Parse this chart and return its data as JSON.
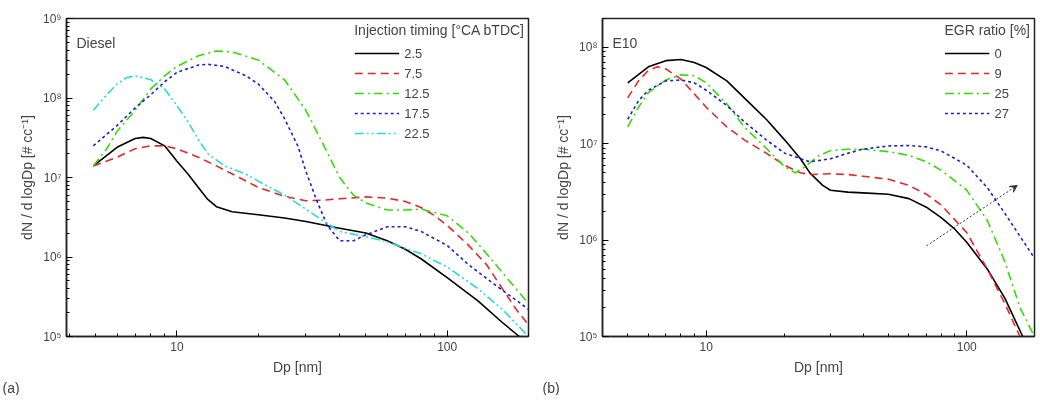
{
  "chart_data": [
    {
      "type": "line",
      "annotations": [
        "Diesel",
        "(a)"
      ],
      "xlabel": "Dp [nm]",
      "ylabel": "dN / d logDp [# cc⁻¹]",
      "legend_title": "Injection timing [°CA bTDC]",
      "legend": "top right",
      "log": "xy",
      "grid": false,
      "xlim": [
        3.9,
        200
      ],
      "ylim": [
        100000,
        1000000000
      ],
      "xticks": [
        10,
        100
      ],
      "yticks": [
        {
          "value": 100000,
          "label": "10⁵"
        },
        {
          "value": 1000000,
          "label": "10⁶"
        },
        {
          "value": 10000000,
          "label": "10⁷"
        },
        {
          "value": 100000000,
          "label": "10⁸"
        },
        {
          "value": 1000000000,
          "label": "10⁹"
        }
      ],
      "series": [
        {
          "name": "2.5",
          "color": "#000000",
          "line_style": "solid",
          "x": [
            4.9,
            5.5,
            6,
            7,
            7.5,
            8,
            9,
            10,
            11,
            12,
            13,
            14,
            16,
            20,
            25,
            30,
            40,
            50,
            60,
            70,
            80,
            100,
            130,
            160,
            185
          ],
          "values": [
            14000000,
            19000000,
            24000000,
            31000000,
            32000000,
            31000000,
            25000000,
            16000000,
            11000000,
            7500000,
            5300000,
            4300000,
            3700000,
            3400000,
            3100000,
            2800000,
            2300000,
            2000000,
            1600000,
            1250000,
            950000,
            550000,
            280000,
            150000,
            100000
          ]
        },
        {
          "name": "7.5",
          "color": "#e8262b",
          "line_style": "dashed",
          "x": [
            4.9,
            6,
            7,
            8,
            9,
            10,
            12,
            14,
            17,
            20,
            25,
            30,
            35,
            40,
            50,
            60,
            70,
            80,
            90,
            100,
            120,
            140,
            160,
            180,
            200
          ],
          "values": [
            14000000,
            18000000,
            23000000,
            25000000,
            25000000,
            23000000,
            18000000,
            14000000,
            10000000,
            7500000,
            5800000,
            5100000,
            5200000,
            5400000,
            5700000,
            5500000,
            5000000,
            4200000,
            3300000,
            2500000,
            1400000,
            800000,
            400000,
            220000,
            140000
          ]
        },
        {
          "name": "12.5",
          "color": "#33dd00",
          "line_style": "dashdot",
          "x": [
            4.9,
            5.5,
            6,
            7,
            8,
            9,
            10,
            12,
            14,
            16,
            20,
            25,
            30,
            35,
            40,
            45,
            50,
            60,
            70,
            80,
            100,
            120,
            140,
            170,
            200
          ],
          "values": [
            14000000,
            23000000,
            38000000,
            70000000,
            130000000,
            190000000,
            250000000,
            340000000,
            390000000,
            380000000,
            300000000,
            170000000,
            70000000,
            25000000,
            10000000,
            6000000,
            4800000,
            3900000,
            3900000,
            4000000,
            3300000,
            2000000,
            1100000,
            500000,
            260000
          ]
        },
        {
          "name": "17.5",
          "color": "#1f1fd0",
          "line_style": "dotted",
          "x": [
            4.9,
            6,
            7,
            8,
            9,
            10,
            12,
            13,
            15,
            18,
            20,
            23,
            25,
            28,
            30,
            33,
            36,
            40,
            45,
            50,
            60,
            70,
            80,
            100,
            120,
            150,
            200
          ],
          "values": [
            25000000,
            45000000,
            75000000,
            110000000,
            160000000,
            210000000,
            260000000,
            265000000,
            250000000,
            190000000,
            150000000,
            90000000,
            55000000,
            25000000,
            12000000,
            5000000,
            2500000,
            1600000,
            1600000,
            1900000,
            2400000,
            2400000,
            2100000,
            1400000,
            800000,
            450000,
            220000
          ]
        },
        {
          "name": "22.5",
          "color": "#22dddd",
          "line_style": "dashdotdot",
          "x": [
            4.9,
            5.5,
            6,
            6.5,
            7,
            8,
            9,
            10,
            11,
            12,
            13,
            15,
            18,
            20,
            25,
            30,
            35,
            40,
            50,
            60,
            80,
            100,
            130,
            160,
            200
          ],
          "values": [
            70000000,
            110000000,
            150000000,
            180000000,
            190000000,
            170000000,
            130000000,
            80000000,
            50000000,
            30000000,
            20000000,
            14000000,
            11000000,
            9000000,
            6000000,
            4000000,
            2800000,
            2100000,
            1800000,
            1550000,
            1100000,
            750000,
            400000,
            220000,
            100000
          ]
        }
      ]
    },
    {
      "type": "line",
      "annotations": [
        "E10",
        "(b)"
      ],
      "xlabel": "Dp [nm]",
      "ylabel": "dN / d logDp [# cc⁻¹]",
      "legend_title": "EGR ratio [%]",
      "legend": "top right",
      "log": "xy",
      "grid": false,
      "xlim": [
        4,
        182
      ],
      "ylim": [
        100000,
        200000000
      ],
      "xticks": [
        10,
        100
      ],
      "yticks": [
        {
          "value": 100000,
          "label": "10⁵"
        },
        {
          "value": 1000000,
          "label": "10⁶"
        },
        {
          "value": 10000000,
          "label": "10⁷"
        },
        {
          "value": 100000000,
          "label": "10⁸"
        }
      ],
      "series": [
        {
          "name": "0",
          "color": "#000000",
          "line_style": "solid",
          "x": [
            5,
            6,
            7,
            8,
            9,
            10,
            12,
            14,
            17,
            20,
            23,
            25,
            28,
            30,
            35,
            40,
            50,
            60,
            70,
            80,
            90,
            100,
            120,
            140,
            164
          ],
          "values": [
            43000000,
            63000000,
            73000000,
            75000000,
            70000000,
            62000000,
            45000000,
            30000000,
            18000000,
            11000000,
            7000000,
            5000000,
            3700000,
            3300000,
            3150000,
            3100000,
            3000000,
            2700000,
            2200000,
            1700000,
            1300000,
            950000,
            500000,
            250000,
            100000
          ]
        },
        {
          "name": "9",
          "color": "#e8262b",
          "line_style": "dashed",
          "x": [
            5,
            5.5,
            6,
            6.5,
            7,
            8,
            9,
            10,
            12,
            14,
            17,
            20,
            23,
            25,
            30,
            35,
            40,
            50,
            60,
            70,
            80,
            100,
            120,
            140,
            160
          ],
          "values": [
            30000000,
            45000000,
            58000000,
            63000000,
            60000000,
            47000000,
            33000000,
            24000000,
            15000000,
            11000000,
            8000000,
            6000000,
            5000000,
            4800000,
            4900000,
            4800000,
            4600000,
            4300000,
            3700000,
            3000000,
            2300000,
            1200000,
            500000,
            220000,
            100000
          ]
        },
        {
          "name": "25",
          "color": "#33dd00",
          "line_style": "dashdot",
          "x": [
            5,
            5.5,
            6,
            7,
            8,
            9,
            10,
            12,
            14,
            17,
            20,
            22,
            24,
            27,
            30,
            35,
            40,
            50,
            60,
            70,
            80,
            100,
            120,
            140,
            160,
            182
          ],
          "values": [
            15000000,
            24000000,
            34000000,
            46000000,
            52000000,
            51000000,
            43000000,
            26000000,
            15000000,
            9000000,
            5800000,
            5000000,
            5800000,
            7500000,
            8500000,
            8800000,
            8800000,
            8300000,
            7600000,
            6500000,
            5300000,
            3300000,
            1600000,
            600000,
            200000,
            100000
          ]
        },
        {
          "name": "27",
          "color": "#1f1fd0",
          "line_style": "dotted",
          "x": [
            5,
            5.5,
            6,
            7,
            8,
            9,
            10,
            12,
            14,
            17,
            20,
            25,
            30,
            35,
            40,
            50,
            60,
            70,
            80,
            100,
            120,
            140,
            160,
            182
          ],
          "values": [
            18000000,
            28000000,
            36000000,
            45000000,
            46000000,
            43000000,
            36000000,
            25000000,
            17000000,
            11000000,
            8000000,
            6500000,
            7000000,
            8000000,
            8800000,
            9500000,
            9600000,
            9300000,
            8400000,
            6000000,
            3500000,
            1900000,
            1100000,
            650000
          ]
        }
      ]
    }
  ]
}
